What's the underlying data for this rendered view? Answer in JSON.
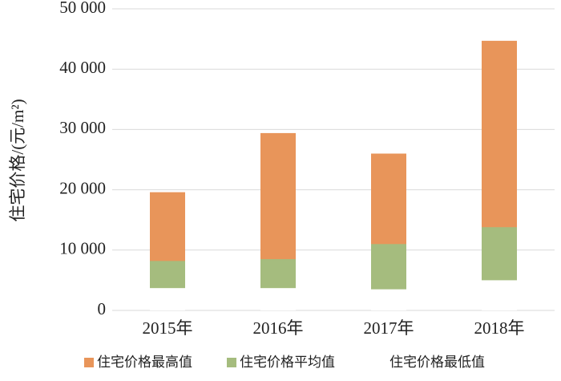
{
  "chart_data": {
    "type": "bar",
    "barmode": "overlay",
    "y_label": "住宅价格/(元/m²)",
    "categories": [
      "2015年",
      "2016年",
      "2017年",
      "2018年"
    ],
    "series": [
      {
        "name": "住宅价格最高值",
        "color": "#e8955a",
        "values": [
          19600,
          29400,
          26000,
          44700
        ]
      },
      {
        "name": "住宅价格平均值",
        "color": "#a5bc7e",
        "values": [
          8200,
          8500,
          11000,
          13800
        ]
      },
      {
        "name": "住宅价格最低值",
        "color": "#ffffff",
        "values": [
          3700,
          3700,
          3500,
          5000
        ]
      }
    ],
    "ylim": [
      0,
      50000
    ],
    "yticks": [
      0,
      {
        "value": 10000,
        "label": "10 000"
      },
      {
        "value": 20000,
        "label": "20 000"
      },
      {
        "value": 30000,
        "label": "30 000"
      },
      {
        "value": 40000,
        "label": "40 000"
      },
      {
        "value": 50000,
        "label": "50 000"
      }
    ],
    "grid": true,
    "legend": "bottom"
  }
}
